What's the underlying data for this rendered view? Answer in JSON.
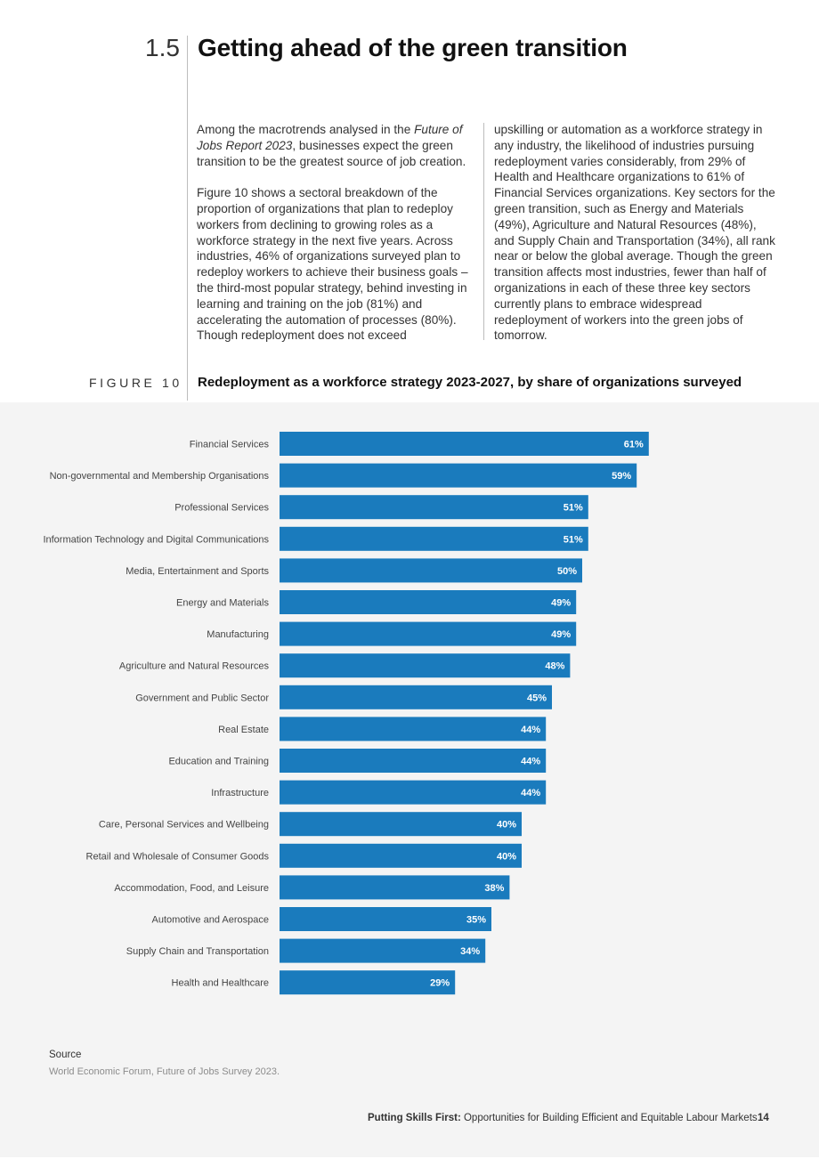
{
  "section": {
    "number": "1.5",
    "title": "Getting ahead of the green transition"
  },
  "body": {
    "left_p1_a": "Among the macrotrends analysed in the ",
    "left_p1_em": "Future of Jobs Report 2023",
    "left_p1_b": ", businesses expect the green transition to be the greatest source of job creation.",
    "left_p2": "Figure 10 shows a sectoral breakdown of the proportion of organizations that plan to redeploy workers from declining to growing roles as a workforce strategy in the next five years. Across industries, 46% of organizations surveyed plan to redeploy workers to achieve their business goals – the third-most popular strategy, behind investing in learning and training on the job (81%) and accelerating the automation of processes (80%). Though redeployment does not exceed",
    "right_p1": "upskilling or automation as a workforce strategy in any industry, the likelihood of industries pursuing redeployment varies considerably, from 29% of Health and Healthcare organizations to 61% of Financial Services organizations. Key sectors for the green transition, such as Energy and Materials (49%), Agriculture and Natural Resources (48%), and Supply Chain and Transportation (34%), all rank near or below the global average. Though the green transition affects most industries, fewer than half of organizations in each of these three key sectors currently plans to embrace widespread redeployment of workers into the green jobs of tomorrow."
  },
  "figure": {
    "label": "FIGURE 10",
    "title": "Redeployment as a workforce strategy 2023-2027, by share of organizations surveyed"
  },
  "chart_data": {
    "type": "bar",
    "orientation": "horizontal",
    "bar_color": "#1a7bbd",
    "label_color": "#ffffff",
    "categories": [
      "Financial Services",
      "Non-governmental and Membership Organisations",
      "Professional Services",
      "Information Technology and Digital Communications",
      "Media, Entertainment and Sports",
      "Energy and Materials",
      "Manufacturing",
      "Agriculture and Natural Resources",
      "Government and Public Sector",
      "Real Estate",
      "Education and Training",
      "Infrastructure",
      "Care, Personal Services and Wellbeing",
      "Retail and Wholesale of Consumer Goods",
      "Accommodation, Food, and Leisure",
      "Automotive and Aerospace",
      "Supply Chain and Transportation",
      "Health and Healthcare"
    ],
    "values": [
      61,
      59,
      51,
      51,
      50,
      49,
      49,
      48,
      45,
      44,
      44,
      44,
      40,
      40,
      38,
      35,
      34,
      29
    ],
    "value_labels": [
      "61%",
      "59%",
      "51%",
      "51%",
      "50%",
      "49%",
      "49%",
      "48%",
      "45%",
      "44%",
      "44%",
      "44%",
      "40%",
      "40%",
      "38%",
      "35%",
      "34%",
      "29%"
    ],
    "xlim": [
      0,
      100
    ]
  },
  "source": {
    "label": "Source",
    "text": "World Economic Forum, Future of Jobs Survey 2023."
  },
  "footer": {
    "bold": "Putting Skills First:",
    "rest": " Opportunities for Building Efficient and Equitable Labour Markets",
    "page": "14"
  }
}
